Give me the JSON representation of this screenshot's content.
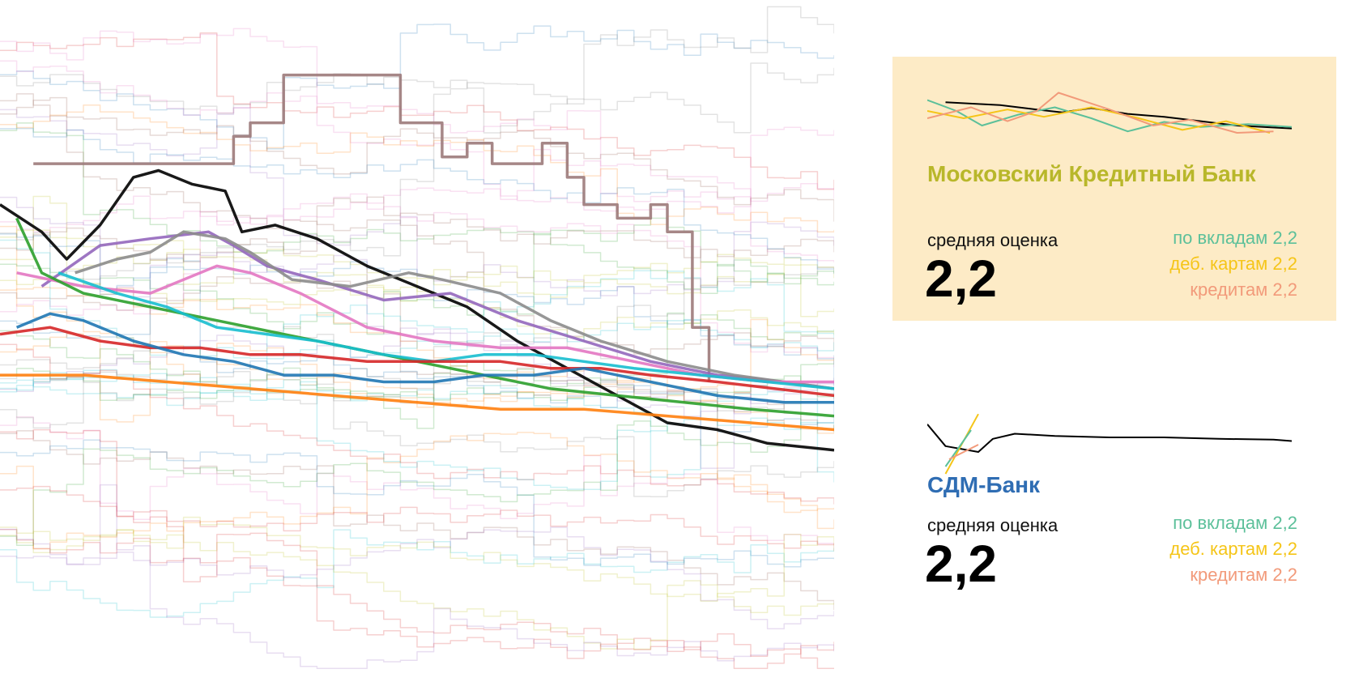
{
  "chart_data": {
    "type": "line",
    "title": "",
    "xlabel": "",
    "ylabel": "",
    "grid": false,
    "legend": "none",
    "x_range": [
      0,
      100
    ],
    "y_range": [
      0,
      100
    ],
    "background_series": 50,
    "series": [
      {
        "color": "#000000",
        "points": [
          [
            0,
            70
          ],
          [
            5,
            66
          ],
          [
            8,
            62
          ],
          [
            12,
            67
          ],
          [
            16,
            74
          ],
          [
            19,
            75
          ],
          [
            23,
            73
          ],
          [
            27,
            72
          ],
          [
            29,
            66
          ],
          [
            33,
            67
          ],
          [
            38,
            65
          ],
          [
            44,
            61
          ],
          [
            50,
            58
          ],
          [
            56,
            55
          ],
          [
            62,
            50
          ],
          [
            68,
            46
          ],
          [
            74,
            42
          ],
          [
            80,
            38
          ],
          [
            86,
            37
          ],
          [
            92,
            35
          ],
          [
            100,
            34
          ]
        ]
      },
      {
        "color": "#9c7a7a",
        "points": [
          [
            4,
            76
          ],
          [
            28,
            76
          ],
          [
            28,
            80
          ],
          [
            30,
            80
          ],
          [
            30,
            82
          ],
          [
            34,
            82
          ],
          [
            34,
            89
          ],
          [
            48,
            89
          ],
          [
            48,
            82
          ],
          [
            53,
            82
          ],
          [
            53,
            77
          ],
          [
            56,
            77
          ],
          [
            56,
            79
          ],
          [
            59,
            79
          ],
          [
            59,
            76
          ],
          [
            65,
            76
          ],
          [
            65,
            79
          ],
          [
            68,
            79
          ],
          [
            68,
            74
          ],
          [
            70,
            74
          ],
          [
            70,
            70
          ],
          [
            74,
            70
          ],
          [
            74,
            68
          ],
          [
            78,
            68
          ],
          [
            78,
            70
          ],
          [
            80,
            70
          ],
          [
            80,
            66
          ],
          [
            83,
            66
          ],
          [
            83,
            52
          ],
          [
            85,
            52
          ],
          [
            85,
            44
          ]
        ]
      },
      {
        "color": "#9467bd",
        "points": [
          [
            5,
            58
          ],
          [
            12,
            64
          ],
          [
            18,
            65
          ],
          [
            25,
            66
          ],
          [
            28,
            64
          ],
          [
            32,
            61
          ],
          [
            38,
            59
          ],
          [
            46,
            56
          ],
          [
            54,
            57
          ],
          [
            62,
            53
          ],
          [
            70,
            50
          ],
          [
            78,
            47
          ],
          [
            86,
            45
          ],
          [
            94,
            44
          ],
          [
            100,
            43
          ]
        ]
      },
      {
        "color": "#8c8c8c",
        "points": [
          [
            9,
            60
          ],
          [
            14,
            62
          ],
          [
            18,
            63
          ],
          [
            22,
            66
          ],
          [
            27,
            65
          ],
          [
            30,
            63
          ],
          [
            35,
            59
          ],
          [
            42,
            58
          ],
          [
            49,
            60
          ],
          [
            53,
            59
          ],
          [
            60,
            57
          ],
          [
            66,
            53
          ],
          [
            72,
            50
          ],
          [
            80,
            47
          ],
          [
            88,
            45
          ],
          [
            100,
            43
          ]
        ]
      },
      {
        "color": "#e377c2",
        "points": [
          [
            2,
            60
          ],
          [
            10,
            58
          ],
          [
            18,
            57
          ],
          [
            26,
            61
          ],
          [
            30,
            60
          ],
          [
            36,
            57
          ],
          [
            44,
            52
          ],
          [
            52,
            50
          ],
          [
            60,
            49
          ],
          [
            68,
            49
          ],
          [
            76,
            47
          ],
          [
            84,
            45
          ],
          [
            92,
            44
          ],
          [
            100,
            44
          ]
        ]
      },
      {
        "color": "#2ca02c",
        "points": [
          [
            2,
            68
          ],
          [
            5,
            60
          ],
          [
            10,
            57
          ],
          [
            18,
            55
          ],
          [
            26,
            53
          ],
          [
            34,
            51
          ],
          [
            42,
            49
          ],
          [
            50,
            47
          ],
          [
            58,
            45
          ],
          [
            66,
            43
          ],
          [
            74,
            42
          ],
          [
            82,
            41
          ],
          [
            90,
            40
          ],
          [
            100,
            39
          ]
        ]
      },
      {
        "color": "#17becf",
        "points": [
          [
            7,
            60
          ],
          [
            14,
            57
          ],
          [
            20,
            55
          ],
          [
            26,
            52
          ],
          [
            32,
            51
          ],
          [
            38,
            50
          ],
          [
            46,
            48
          ],
          [
            52,
            47
          ],
          [
            58,
            48
          ],
          [
            64,
            48
          ],
          [
            70,
            47
          ],
          [
            76,
            46
          ],
          [
            84,
            45
          ],
          [
            92,
            44
          ],
          [
            100,
            43
          ]
        ]
      },
      {
        "color": "#d62728",
        "points": [
          [
            0,
            51
          ],
          [
            6,
            52
          ],
          [
            12,
            50
          ],
          [
            18,
            49
          ],
          [
            24,
            49
          ],
          [
            30,
            48
          ],
          [
            36,
            48
          ],
          [
            44,
            47
          ],
          [
            52,
            47
          ],
          [
            60,
            47
          ],
          [
            66,
            46
          ],
          [
            72,
            46
          ],
          [
            78,
            45
          ],
          [
            86,
            44
          ],
          [
            100,
            42
          ]
        ]
      },
      {
        "color": "#1f77b4",
        "points": [
          [
            2,
            52
          ],
          [
            6,
            54
          ],
          [
            10,
            53
          ],
          [
            16,
            50
          ],
          [
            22,
            48
          ],
          [
            28,
            47
          ],
          [
            34,
            45
          ],
          [
            40,
            45
          ],
          [
            46,
            44
          ],
          [
            52,
            44
          ],
          [
            58,
            45
          ],
          [
            64,
            45
          ],
          [
            70,
            46
          ],
          [
            78,
            44
          ],
          [
            86,
            42
          ],
          [
            94,
            41
          ],
          [
            100,
            41
          ]
        ]
      },
      {
        "color": "#ff7f0e",
        "points": [
          [
            0,
            45
          ],
          [
            10,
            45
          ],
          [
            20,
            44
          ],
          [
            30,
            43
          ],
          [
            40,
            42
          ],
          [
            50,
            41
          ],
          [
            60,
            40
          ],
          [
            70,
            40
          ],
          [
            80,
            39
          ],
          [
            90,
            38
          ],
          [
            100,
            37
          ]
        ]
      }
    ]
  },
  "banks": [
    {
      "name": "Московский Кредитный Банк",
      "name_color": "#b8b72a",
      "avg_label": "средняя оценка",
      "avg_value": "2,2",
      "sub": [
        {
          "label": "по вкладам 2,2",
          "color": "#5cc09a"
        },
        {
          "label": "деб. картам 2,2",
          "color": "#f5c518"
        },
        {
          "label": "кредитам 2,2",
          "color": "#f29a7a"
        }
      ],
      "spark": [
        {
          "color": "#000000",
          "points": [
            [
              5,
              82
            ],
            [
              20,
              78
            ],
            [
              30,
              72
            ],
            [
              37,
              68
            ],
            [
              45,
              74
            ],
            [
              55,
              66
            ],
            [
              65,
              62
            ],
            [
              75,
              56
            ],
            [
              85,
              50
            ],
            [
              100,
              46
            ]
          ]
        },
        {
          "color": "#5cc09a",
          "points": [
            [
              0,
              85
            ],
            [
              8,
              70
            ],
            [
              15,
              50
            ],
            [
              25,
              65
            ],
            [
              35,
              75
            ],
            [
              45,
              60
            ],
            [
              55,
              42
            ],
            [
              65,
              55
            ],
            [
              75,
              48
            ],
            [
              88,
              52
            ],
            [
              100,
              48
            ]
          ]
        },
        {
          "color": "#f5c518",
          "points": [
            [
              0,
              70
            ],
            [
              10,
              60
            ],
            [
              22,
              72
            ],
            [
              32,
              62
            ],
            [
              45,
              75
            ],
            [
              58,
              60
            ],
            [
              70,
              44
            ],
            [
              82,
              56
            ],
            [
              94,
              40
            ]
          ]
        },
        {
          "color": "#f29a7a",
          "points": [
            [
              0,
              60
            ],
            [
              12,
              75
            ],
            [
              22,
              56
            ],
            [
              30,
              70
            ],
            [
              36,
              95
            ],
            [
              50,
              72
            ],
            [
              62,
              50
            ],
            [
              72,
              58
            ],
            [
              85,
              40
            ],
            [
              95,
              42
            ]
          ]
        }
      ]
    },
    {
      "name": "СДМ-Банк",
      "name_color": "#2f6db3",
      "avg_label": "средняя оценка",
      "avg_value": "2,2",
      "sub": [
        {
          "label": "по вкладам 2,2",
          "color": "#5cc09a"
        },
        {
          "label": "деб. картам 2,2",
          "color": "#f5c518"
        },
        {
          "label": "кредитам 2,2",
          "color": "#f29a7a"
        }
      ],
      "spark": [
        {
          "color": "#000000",
          "points": [
            [
              0,
              78
            ],
            [
              5,
              48
            ],
            [
              14,
              40
            ],
            [
              18,
              58
            ],
            [
              24,
              65
            ],
            [
              35,
              62
            ],
            [
              50,
              60
            ],
            [
              65,
              60
            ],
            [
              80,
              58
            ],
            [
              95,
              57
            ],
            [
              100,
              55
            ]
          ]
        },
        {
          "color": "#f5c518",
          "points": [
            [
              5,
              10
            ],
            [
              14,
              92
            ]
          ]
        },
        {
          "color": "#5cc09a",
          "points": [
            [
              5,
              20
            ],
            [
              12,
              70
            ]
          ]
        },
        {
          "color": "#f29a7a",
          "points": [
            [
              6,
              30
            ],
            [
              14,
              50
            ]
          ]
        }
      ]
    }
  ]
}
